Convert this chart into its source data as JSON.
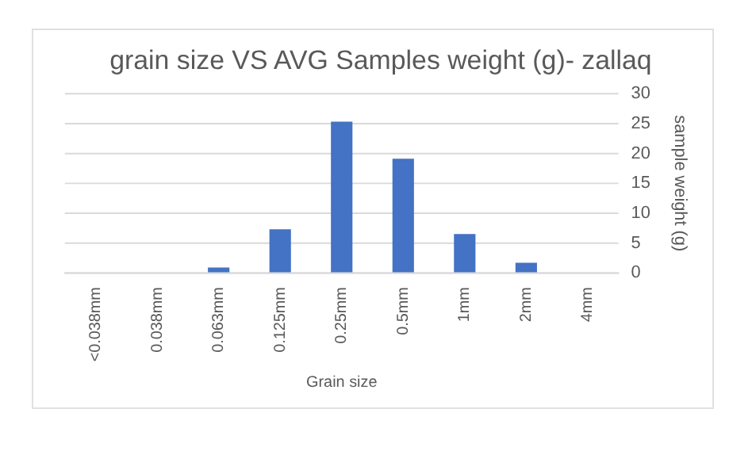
{
  "chart_data": {
    "type": "bar",
    "title": "grain size VS AVG Samples weight (g)- zallaq",
    "xlabel": "Grain size",
    "ylabel": "sample weight (g)",
    "categories": [
      "<0.038mm",
      "0.038mm",
      "0.063mm",
      "0.125mm",
      "0.25mm",
      "0.5mm",
      "1mm",
      "2mm",
      "4mm"
    ],
    "values": [
      0,
      0.1,
      0.9,
      7.3,
      25.3,
      19.1,
      6.5,
      1.7,
      0
    ],
    "color": "#4472c4",
    "ylim": [
      0,
      30
    ],
    "yticks": [
      0,
      5,
      10,
      15,
      20,
      25,
      30
    ],
    "grid": "y",
    "legend": false
  }
}
